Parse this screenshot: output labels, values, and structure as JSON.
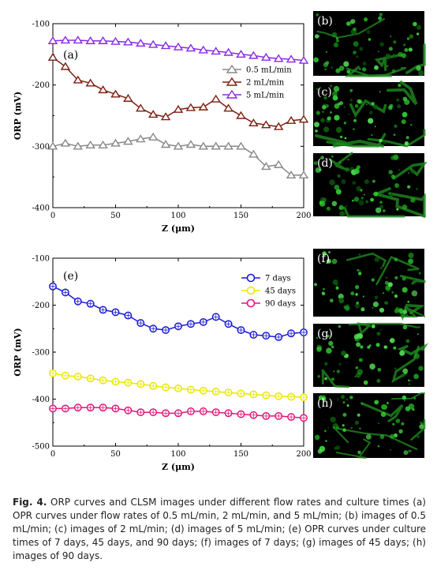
{
  "chart_data": [
    {
      "panel": "(a)",
      "type": "line",
      "xlabel": "Z (μm)",
      "ylabel": "ORP (mV)",
      "xlim": [
        0,
        200
      ],
      "ylim": [
        -400,
        -100
      ],
      "xticks": [
        0,
        50,
        100,
        150,
        200
      ],
      "yticks": [
        -100,
        -200,
        -300,
        -400
      ],
      "legend_position": "top-right",
      "x": [
        0,
        10,
        20,
        30,
        40,
        50,
        60,
        70,
        80,
        90,
        100,
        110,
        120,
        130,
        140,
        150,
        160,
        170,
        180,
        190,
        200
      ],
      "series": [
        {
          "name": "0.5 mL/min",
          "marker": "triangle",
          "color": "#888888",
          "values": [
            -300,
            -295,
            -300,
            -298,
            -298,
            -295,
            -292,
            -288,
            -285,
            -297,
            -300,
            -297,
            -300,
            -300,
            -300,
            -300,
            -313,
            -333,
            -330,
            -347,
            -347
          ]
        },
        {
          "name": "2 mL/min",
          "marker": "triangle",
          "color": "#7a1f10",
          "values": [
            -155,
            -170,
            -192,
            -197,
            -208,
            -215,
            -222,
            -238,
            -248,
            -252,
            -240,
            -237,
            -236,
            -223,
            -238,
            -250,
            -262,
            -265,
            -268,
            -258,
            -256
          ]
        },
        {
          "name": "5 mL/min",
          "marker": "triangle",
          "color": "#8a2be2",
          "values": [
            -128,
            -127,
            -127,
            -128,
            -128,
            -129,
            -130,
            -132,
            -134,
            -136,
            -138,
            -140,
            -143,
            -145,
            -147,
            -150,
            -152,
            -155,
            -157,
            -158,
            -160
          ]
        }
      ]
    },
    {
      "panel": "(e)",
      "type": "line",
      "xlabel": "Z (μm)",
      "ylabel": "ORP (mV)",
      "xlim": [
        0,
        200
      ],
      "ylim": [
        -500,
        -100
      ],
      "xticks": [
        0,
        50,
        100,
        150,
        200
      ],
      "yticks": [
        -100,
        -200,
        -300,
        -400,
        -500
      ],
      "legend_position": "top-right",
      "x": [
        0,
        10,
        20,
        30,
        40,
        50,
        60,
        70,
        80,
        90,
        100,
        110,
        120,
        130,
        140,
        150,
        160,
        170,
        180,
        190,
        200
      ],
      "series": [
        {
          "name": "7 days",
          "marker": "circle",
          "color": "#1a1ad6",
          "values": [
            -160,
            -173,
            -192,
            -197,
            -210,
            -215,
            -222,
            -238,
            -250,
            -253,
            -245,
            -240,
            -236,
            -225,
            -240,
            -253,
            -263,
            -265,
            -268,
            -260,
            -258
          ]
        },
        {
          "name": "45 days",
          "marker": "circle",
          "color": "#e8e800",
          "values": [
            -345,
            -350,
            -352,
            -356,
            -360,
            -363,
            -365,
            -368,
            -372,
            -375,
            -377,
            -380,
            -382,
            -384,
            -386,
            -388,
            -390,
            -392,
            -394,
            -395,
            -396
          ]
        },
        {
          "name": "90 days",
          "marker": "circle",
          "color": "#e0177a",
          "values": [
            -420,
            -420,
            -418,
            -418,
            -418,
            -420,
            -424,
            -428,
            -428,
            -430,
            -430,
            -426,
            -426,
            -428,
            -430,
            -432,
            -434,
            -436,
            -436,
            -438,
            -440
          ]
        }
      ]
    }
  ],
  "images": [
    {
      "letter": "(b)",
      "seed": 11
    },
    {
      "letter": "(c)",
      "seed": 23
    },
    {
      "letter": "(d)",
      "seed": 37
    },
    {
      "letter": "(f)",
      "seed": 41
    },
    {
      "letter": "(g)",
      "seed": 53
    },
    {
      "letter": "(h)",
      "seed": 67
    }
  ],
  "caption": {
    "label": "Fig. 4.",
    "text": "ORP curves and CLSM images under different flow rates and culture times (a) OPR curves under flow rates of 0.5 mL/min, 2 mL/min, and 5 mL/min; (b) images of 0.5 mL/min; (c) images of 2 mL/min; (d) images of 5 mL/min; (e) OPR curves under culture times of 7 days, 45 days, and 90 days; (f) images of 7 days; (g) images of 45 days; (h) images of 90 days."
  }
}
